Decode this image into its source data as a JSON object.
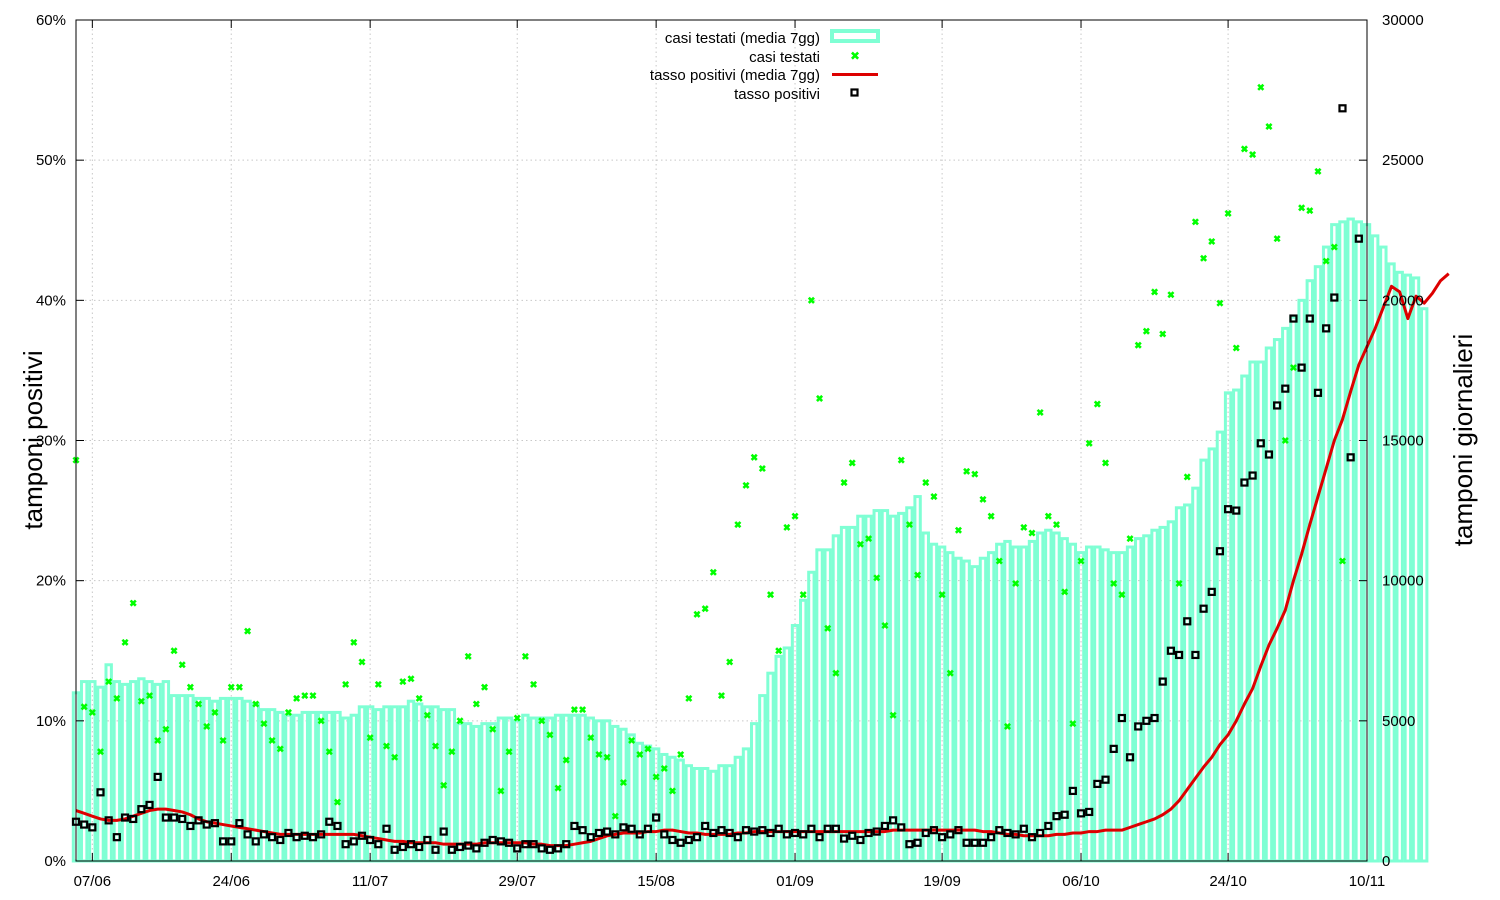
{
  "chart_data": {
    "type": "bar",
    "title": "",
    "xlabel": "",
    "ylabel": "tamponi positivi",
    "y2label": "tamponi giornalieri",
    "ylim": [
      0,
      60
    ],
    "y2lim": [
      0,
      30000
    ],
    "x_start": "2020-06-05",
    "x_end": "2020-11-10",
    "x_ticks": [
      {
        "date": "2020-06-07",
        "label": "07/06"
      },
      {
        "date": "2020-06-24",
        "label": "24/06"
      },
      {
        "date": "2020-07-11",
        "label": "11/07"
      },
      {
        "date": "2020-07-29",
        "label": "29/07"
      },
      {
        "date": "2020-08-15",
        "label": "15/08"
      },
      {
        "date": "2020-09-01",
        "label": "01/09"
      },
      {
        "date": "2020-09-19",
        "label": "19/09"
      },
      {
        "date": "2020-10-06",
        "label": "06/10"
      },
      {
        "date": "2020-10-24",
        "label": "24/10"
      },
      {
        "date": "2020-11-10",
        "label": "10/11"
      }
    ],
    "y_ticks": [
      {
        "value": 0,
        "label": "0%"
      },
      {
        "value": 10,
        "label": "10%"
      },
      {
        "value": 20,
        "label": "20%"
      },
      {
        "value": 30,
        "label": "30%"
      },
      {
        "value": 40,
        "label": "40%"
      },
      {
        "value": 50,
        "label": "50%"
      },
      {
        "value": 60,
        "label": "60%"
      }
    ],
    "y2_ticks": [
      {
        "value": 0,
        "label": "0"
      },
      {
        "value": 5000,
        "label": "5000"
      },
      {
        "value": 10000,
        "label": "10000"
      },
      {
        "value": 15000,
        "label": "15000"
      },
      {
        "value": 20000,
        "label": "20000"
      },
      {
        "value": 25000,
        "label": "25000"
      },
      {
        "value": 30000,
        "label": "30000"
      }
    ],
    "grid": true,
    "legend_position": "top-center",
    "series": [
      {
        "name": "casi testati (media 7gg)",
        "kind": "bar",
        "axis": "y2",
        "color": "#7fffd4",
        "values": [
          6000,
          6400,
          6400,
          6200,
          7000,
          6400,
          6300,
          6400,
          6500,
          6400,
          6300,
          6400,
          5900,
          5900,
          5900,
          5800,
          5800,
          5700,
          5800,
          5800,
          5800,
          5700,
          5600,
          5400,
          5400,
          5300,
          5200,
          5200,
          5300,
          5300,
          5300,
          5300,
          5300,
          5100,
          5200,
          5500,
          5500,
          5400,
          5500,
          5500,
          5500,
          5700,
          5600,
          5500,
          5500,
          5400,
          5400,
          4900,
          4900,
          4800,
          4900,
          4900,
          5100,
          5100,
          5000,
          5200,
          5100,
          5100,
          5100,
          5200,
          5200,
          5200,
          5200,
          5100,
          5000,
          5000,
          4800,
          4700,
          4500,
          4200,
          4100,
          4000,
          3800,
          3700,
          3600,
          3400,
          3300,
          3300,
          3200,
          3400,
          3400,
          3700,
          4000,
          4900,
          5900,
          6700,
          7300,
          7600,
          8400,
          9300,
          10300,
          11100,
          11100,
          11600,
          11900,
          11900,
          12300,
          12300,
          12500,
          12500,
          12300,
          12400,
          12600,
          13000,
          11700,
          11300,
          11200,
          11000,
          10800,
          10700,
          10500,
          10800,
          11000,
          11300,
          11400,
          11200,
          11200,
          11400,
          11700,
          11800,
          11700,
          11500,
          11300,
          11000,
          11200,
          11200,
          11100,
          11000,
          11000,
          11200,
          11500,
          11600,
          11800,
          11900,
          12100,
          12600,
          12700,
          13300,
          14300,
          14700,
          15300,
          16700,
          16800,
          17300,
          17800,
          17800,
          18300,
          18600,
          19000,
          19400,
          20000,
          20700,
          21200,
          21900,
          22700,
          22800,
          22900,
          22800,
          22700,
          22300,
          21900,
          21300,
          21000,
          20900,
          20800,
          19700
        ]
      },
      {
        "name": "casi testati",
        "kind": "scatter",
        "axis": "y2",
        "color": "#00ff00",
        "values": [
          14300,
          5500,
          5300,
          3900,
          6400,
          5800,
          7800,
          9200,
          5700,
          5900,
          4300,
          4700,
          7500,
          7000,
          6200,
          5600,
          4800,
          5300,
          4300,
          6200,
          6200,
          8200,
          5600,
          4900,
          4300,
          4000,
          5300,
          5800,
          5900,
          5900,
          5000,
          3900,
          2100,
          6300,
          7800,
          7100,
          4400,
          6300,
          4100,
          3700,
          6400,
          6500,
          5800,
          5200,
          4100,
          2700,
          3900,
          5000,
          7300,
          5600,
          6200,
          4700,
          2500,
          3900,
          5100,
          7300,
          6300,
          5000,
          4500,
          2600,
          3600,
          5400,
          5400,
          4400,
          3800,
          3700,
          1600,
          2800,
          4300,
          3800,
          4000,
          3000,
          3300,
          2500,
          3800,
          5800,
          8800,
          9000,
          10300,
          5900,
          7100,
          12000,
          13400,
          14400,
          14000,
          9500,
          7500,
          11900,
          12300,
          9500,
          20000,
          16500,
          8300,
          6700,
          13500,
          14200,
          11300,
          11500,
          10100,
          8400,
          5200,
          14300,
          12000,
          10200,
          13500,
          13000,
          9500,
          6700,
          11800,
          13900,
          13800,
          12900,
          12300,
          10700,
          4800,
          9900,
          11900,
          11700,
          16000,
          12300,
          12000,
          9600,
          4900,
          10700,
          14900,
          16300,
          14200,
          9900,
          9500,
          11500,
          18400,
          18900,
          20300,
          18800,
          20200,
          9900,
          13700,
          22800,
          21500,
          22100,
          19900,
          23100,
          18300,
          25400,
          25200,
          27600,
          26200,
          22200,
          15000,
          17600,
          23300,
          23200,
          24600,
          21400,
          21900,
          10700
        ]
      },
      {
        "name": "tasso positivi (media 7gg)",
        "kind": "line",
        "axis": "y",
        "color": "#dd0000",
        "values": [
          3.6,
          3.4,
          3.2,
          3.0,
          2.9,
          2.9,
          3.0,
          3.2,
          3.4,
          3.6,
          3.7,
          3.7,
          3.6,
          3.5,
          3.3,
          3.0,
          2.8,
          2.7,
          2.6,
          2.5,
          2.4,
          2.3,
          2.2,
          2.1,
          2.0,
          1.9,
          1.9,
          1.9,
          1.9,
          1.9,
          1.9,
          1.9,
          1.9,
          1.9,
          1.9,
          1.8,
          1.7,
          1.6,
          1.5,
          1.4,
          1.4,
          1.3,
          1.3,
          1.3,
          1.3,
          1.2,
          1.2,
          1.2,
          1.2,
          1.2,
          1.3,
          1.3,
          1.3,
          1.3,
          1.3,
          1.3,
          1.2,
          1.2,
          1.1,
          1.1,
          1.1,
          1.2,
          1.3,
          1.4,
          1.6,
          1.8,
          1.9,
          2.0,
          2.0,
          2.0,
          2.1,
          2.1,
          2.2,
          2.2,
          2.1,
          2.0,
          2.0,
          1.9,
          1.9,
          1.9,
          1.9,
          2.0,
          2.0,
          2.1,
          2.1,
          2.1,
          2.1,
          2.1,
          2.1,
          2.1,
          2.1,
          2.1,
          2.1,
          2.1,
          2.1,
          2.1,
          2.1,
          2.1,
          2.1,
          2.1,
          2.2,
          2.2,
          2.2,
          2.2,
          2.2,
          2.2,
          2.2,
          2.2,
          2.2,
          2.2,
          2.2,
          2.1,
          2.1,
          2.0,
          1.9,
          1.9,
          1.8,
          1.8,
          1.8,
          1.8,
          1.9,
          1.9,
          2.0,
          2.0,
          2.1,
          2.1,
          2.2,
          2.2,
          2.2,
          2.4,
          2.6,
          2.8,
          3.0,
          3.3,
          3.7,
          4.3,
          5.1,
          5.9,
          6.7,
          7.4,
          8.3,
          9.0,
          10.0,
          11.2,
          12.3,
          13.9,
          15.4,
          16.6,
          17.9,
          20.0,
          21.9,
          24.0,
          26.0,
          28.0,
          30.0,
          31.5,
          33.5,
          35.4,
          36.7,
          38.0,
          39.5,
          41.0,
          40.6,
          38.7,
          40.3,
          39.8,
          40.5,
          41.4,
          41.9
        ]
      },
      {
        "name": "tasso positivi",
        "kind": "scatter",
        "axis": "y",
        "color": "#000000",
        "values": [
          2.8,
          2.6,
          2.4,
          4.9,
          2.9,
          1.7,
          3.1,
          3.0,
          3.7,
          4.0,
          6.0,
          3.1,
          3.1,
          3.0,
          2.5,
          2.9,
          2.6,
          2.7,
          1.4,
          1.4,
          2.7,
          1.9,
          1.4,
          1.9,
          1.7,
          1.5,
          2.0,
          1.7,
          1.8,
          1.7,
          1.9,
          2.8,
          2.5,
          1.2,
          1.4,
          1.8,
          1.5,
          1.2,
          2.3,
          0.8,
          1.0,
          1.2,
          1.0,
          1.5,
          0.8,
          2.1,
          0.8,
          1.0,
          1.1,
          0.9,
          1.3,
          1.5,
          1.4,
          1.3,
          0.9,
          1.2,
          1.2,
          0.9,
          0.8,
          0.9,
          1.2,
          2.5,
          2.2,
          1.7,
          2.0,
          2.1,
          1.9,
          2.4,
          2.3,
          1.9,
          2.3,
          3.1,
          1.9,
          1.5,
          1.3,
          1.5,
          1.7,
          2.5,
          2.0,
          2.2,
          2.0,
          1.7,
          2.2,
          2.1,
          2.2,
          2.0,
          2.3,
          1.9,
          2.0,
          1.9,
          2.3,
          1.7,
          2.3,
          2.3,
          1.6,
          1.8,
          1.5,
          2.0,
          2.1,
          2.5,
          2.9,
          2.4,
          1.2,
          1.3,
          2.0,
          2.2,
          1.7,
          1.9,
          2.2,
          1.3,
          1.3,
          1.3,
          1.7,
          2.2,
          2.0,
          1.9,
          2.3,
          1.7,
          2.0,
          2.5,
          3.2,
          3.3,
          5.0,
          3.4,
          3.5,
          5.5,
          5.8,
          8.0,
          10.2,
          7.4,
          9.6,
          10.0,
          10.2,
          12.8,
          15.0,
          14.7,
          17.1,
          14.7,
          18.0,
          19.2,
          22.1,
          25.1,
          25.0,
          27.0,
          27.5,
          29.8,
          29.0,
          32.5,
          33.7,
          38.7,
          35.2,
          38.7,
          33.4,
          38.0,
          40.2,
          53.7,
          28.8,
          44.4
        ]
      }
    ]
  }
}
